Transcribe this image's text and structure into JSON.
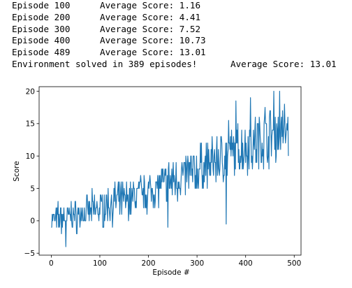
{
  "console": {
    "lines": [
      {
        "episode": "Episode 100",
        "score": "Average Score: 1.16"
      },
      {
        "episode": "Episode 200",
        "score": "Average Score: 4.41"
      },
      {
        "episode": "Episode 300",
        "score": "Average Score: 7.52"
      },
      {
        "episode": "Episode 400",
        "score": "Average Score: 10.73"
      },
      {
        "episode": "Episode 489",
        "score": "Average Score: 13.01"
      }
    ],
    "solved_message": "Environment solved in 389 episodes!",
    "solved_score": "Average Score: 13.01"
  },
  "chart_data": {
    "type": "line",
    "title": "",
    "xlabel": "Episode #",
    "ylabel": "Score",
    "xlim": [
      -25,
      514
    ],
    "ylim": [
      -5.3,
      20.7
    ],
    "xticks": [
      0,
      100,
      200,
      300,
      400,
      500
    ],
    "yticks": [
      -5,
      0,
      5,
      10,
      15,
      20
    ],
    "grid": false,
    "legend": "none",
    "line_color": "#1f77b4",
    "anchors": [
      [
        0,
        0
      ],
      [
        50,
        0.8
      ],
      [
        100,
        1.9
      ],
      [
        150,
        3.2
      ],
      [
        200,
        4.6
      ],
      [
        250,
        6.2
      ],
      [
        300,
        7.9
      ],
      [
        350,
        9.8
      ],
      [
        400,
        11.3
      ],
      [
        450,
        13.2
      ],
      [
        488,
        14.0
      ]
    ],
    "extremes": [
      [
        30,
        -4.0
      ],
      [
        240,
        -1.0
      ],
      [
        360,
        -0.5
      ],
      [
        365,
        15.5
      ],
      [
        380,
        18.5
      ],
      [
        410,
        19.0
      ],
      [
        440,
        17.5
      ],
      [
        458,
        20.0
      ],
      [
        470,
        20.0
      ],
      [
        485,
        15.0
      ]
    ],
    "noise_amplitude": 3.0,
    "n_points": 489
  }
}
